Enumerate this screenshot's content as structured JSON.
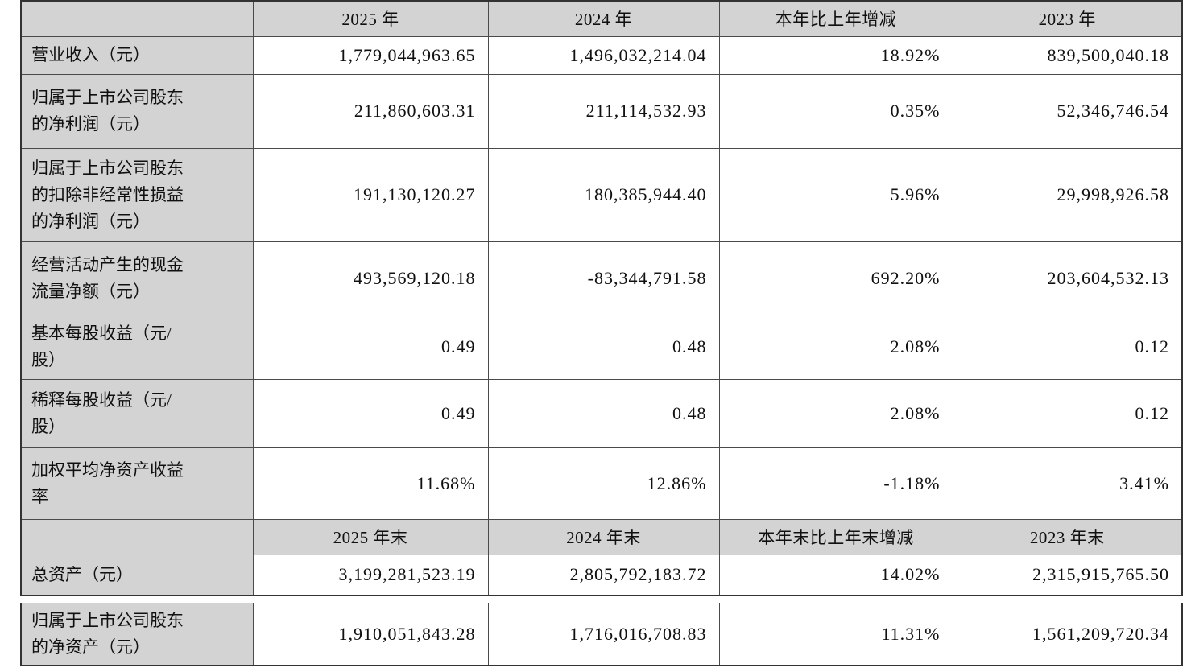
{
  "table": {
    "header1": [
      "",
      "2025 年",
      "2024 年",
      "本年比上年增减",
      "2023 年"
    ],
    "rows1": [
      {
        "label": "营业收入（元）",
        "values": [
          "1,779,044,963.65",
          "1,496,032,214.04",
          "18.92%",
          "839,500,040.18"
        ]
      },
      {
        "label": "归属于上市公司股东\n的净利润（元）",
        "values": [
          "211,860,603.31",
          "211,114,532.93",
          "0.35%",
          "52,346,746.54"
        ]
      },
      {
        "label": "归属于上市公司股东\n的扣除非经常性损益\n的净利润（元）",
        "values": [
          "191,130,120.27",
          "180,385,944.40",
          "5.96%",
          "29,998,926.58"
        ]
      },
      {
        "label": "经营活动产生的现金\n流量净额（元）",
        "values": [
          "493,569,120.18",
          "-83,344,791.58",
          "692.20%",
          "203,604,532.13"
        ]
      },
      {
        "label": "基本每股收益（元/\n股）",
        "values": [
          "0.49",
          "0.48",
          "2.08%",
          "0.12"
        ]
      },
      {
        "label": "稀释每股收益（元/\n股）",
        "values": [
          "0.49",
          "0.48",
          "2.08%",
          "0.12"
        ]
      },
      {
        "label": "加权平均净资产收益\n率",
        "values": [
          "11.68%",
          "12.86%",
          "-1.18%",
          "3.41%"
        ]
      }
    ],
    "header2": [
      "",
      "2025 年末",
      "2024 年末",
      "本年末比上年末增减",
      "2023 年末"
    ],
    "rows2": [
      {
        "label": "总资产（元）",
        "values": [
          "3,199,281,523.19",
          "2,805,792,183.72",
          "14.02%",
          "2,315,915,765.50"
        ]
      }
    ],
    "rows3": [
      {
        "label": "归属于上市公司股东\n的净资产（元）",
        "values": [
          "1,910,051,843.28",
          "1,716,016,708.83",
          "11.31%",
          "1,561,209,720.34"
        ]
      }
    ]
  },
  "colors": {
    "header_bg": "#d3d3d3",
    "border": "#4a4a4a",
    "text": "#101010"
  }
}
